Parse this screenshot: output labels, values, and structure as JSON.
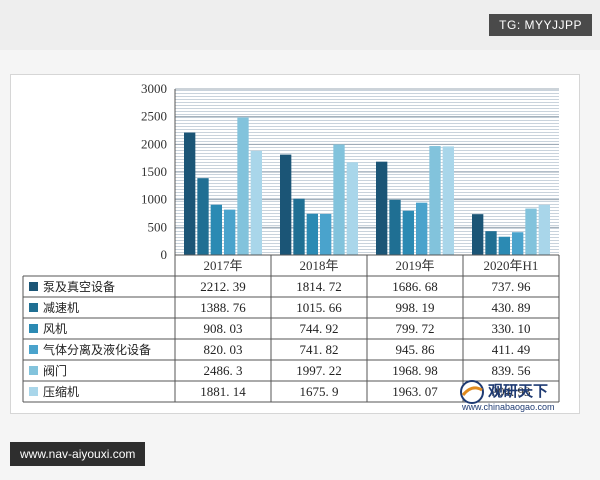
{
  "watermarks": {
    "top_right": "TG: MYYJJPP",
    "bottom_left": "www.nav-aiyouxi.com"
  },
  "logo": {
    "brand": "观研天下",
    "url": "www.chinabaogao.com"
  },
  "colors": [
    "#1b5576",
    "#1f6f93",
    "#2b8ab3",
    "#4aa3cc",
    "#82c3dc",
    "#a9d6ea"
  ],
  "chart_data": {
    "type": "bar",
    "categories": [
      "2017年",
      "2018年",
      "2019年",
      "2020年H1"
    ],
    "ylim": [
      0,
      3000
    ],
    "yticks": [
      "0",
      "500",
      "1000",
      "1500",
      "2000",
      "2500",
      "3000"
    ],
    "grid": true,
    "legend": "table-bottom",
    "series": [
      {
        "name": "泵及真空设备",
        "values": [
          2212.39,
          1814.72,
          1686.68,
          737.96
        ],
        "labels": [
          "2212. 39",
          "1814. 72",
          "1686. 68",
          "737. 96"
        ]
      },
      {
        "name": "减速机",
        "values": [
          1388.76,
          1015.66,
          998.19,
          430.89
        ],
        "labels": [
          "1388. 76",
          "1015. 66",
          "998. 19",
          "430. 89"
        ]
      },
      {
        "name": "风机",
        "values": [
          908.03,
          744.92,
          799.72,
          330.1
        ],
        "labels": [
          "908. 03",
          "744. 92",
          "799. 72",
          "330. 10"
        ]
      },
      {
        "name": "气体分离及液化设备",
        "values": [
          820.03,
          741.82,
          945.86,
          411.49
        ],
        "labels": [
          "820. 03",
          "741. 82",
          "945. 86",
          "411. 49"
        ]
      },
      {
        "name": "阀门",
        "values": [
          2486.3,
          1997.22,
          1968.98,
          839.56
        ],
        "labels": [
          "2486. 3",
          "1997. 22",
          "1968. 98",
          "839. 56"
        ]
      },
      {
        "name": "压缩机",
        "values": [
          1881.14,
          1675.9,
          1963.07,
          904.93
        ],
        "labels": [
          "1881. 14",
          "1675. 9",
          "1963. 07",
          "904. 93"
        ]
      }
    ]
  }
}
